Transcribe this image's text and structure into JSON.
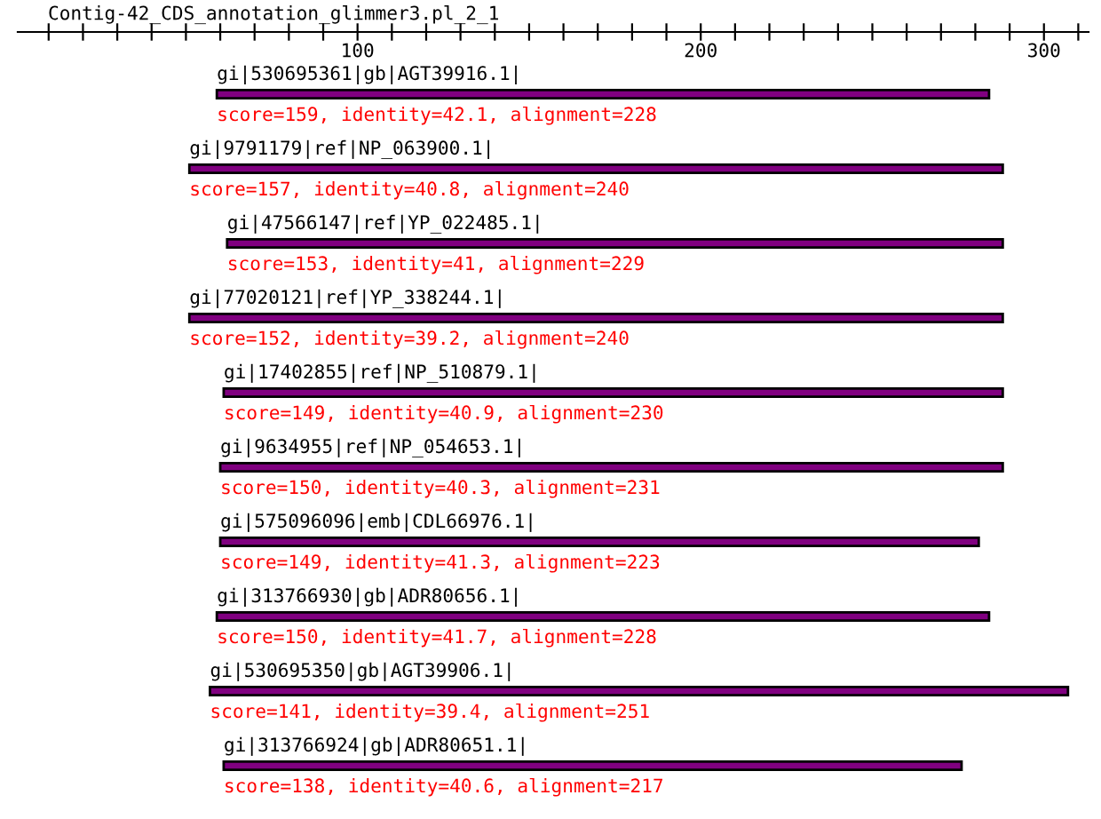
{
  "chart_data": {
    "type": "bar",
    "orientation": "horizontal",
    "title": "Contig-42_CDS_annotation_glimmer3.pl_2_1",
    "categories": [
      "gi|530695361|gb|AGT39916.1|",
      "gi|9791179|ref|NP_063900.1|",
      "gi|47566147|ref|YP_022485.1|",
      "gi|77020121|ref|YP_338244.1|",
      "gi|17402855|ref|NP_510879.1|",
      "gi|9634955|ref|NP_054653.1|",
      "gi|575096096|emb|CDL66976.1|",
      "gi|313766930|gb|ADR80656.1|",
      "gi|530695350|gb|AGT39906.1|",
      "gi|313766924|gb|ADR80651.1|"
    ],
    "base": [
      59,
      51,
      62,
      51,
      61,
      60,
      60,
      59,
      57,
      61
    ],
    "values": [
      225,
      237,
      226,
      237,
      227,
      228,
      221,
      225,
      250,
      215
    ],
    "annotations": [
      "score=159, identity=42.1, alignment=228",
      "score=157, identity=40.8, alignment=240",
      "score=153, identity=41, alignment=229",
      "score=152, identity=39.2, alignment=240",
      "score=149, identity=40.9, alignment=230",
      "score=150, identity=40.3, alignment=231",
      "score=149, identity=41.3, alignment=223",
      "score=150, identity=41.7, alignment=228",
      "score=141, identity=39.4, alignment=251",
      "score=138, identity=40.6, alignment=217"
    ],
    "color": "#800080",
    "xlim": [
      1,
      313
    ],
    "xticks": [
      {
        "value": 10,
        "label": null
      },
      {
        "value": 20,
        "label": null
      },
      {
        "value": 30,
        "label": null
      },
      {
        "value": 40,
        "label": null
      },
      {
        "value": 50,
        "label": null
      },
      {
        "value": 60,
        "label": null
      },
      {
        "value": 70,
        "label": null
      },
      {
        "value": 80,
        "label": null
      },
      {
        "value": 90,
        "label": null
      },
      100,
      {
        "value": 110,
        "label": null
      },
      {
        "value": 120,
        "label": null
      },
      {
        "value": 130,
        "label": null
      },
      {
        "value": 140,
        "label": null
      },
      {
        "value": 150,
        "label": null
      },
      {
        "value": 160,
        "label": null
      },
      {
        "value": 170,
        "label": null
      },
      {
        "value": 180,
        "label": null
      },
      {
        "value": 190,
        "label": null
      },
      200,
      {
        "value": 210,
        "label": null
      },
      {
        "value": 220,
        "label": null
      },
      {
        "value": 230,
        "label": null
      },
      {
        "value": 240,
        "label": null
      },
      {
        "value": 250,
        "label": null
      },
      {
        "value": 260,
        "label": null
      },
      {
        "value": 270,
        "label": null
      },
      {
        "value": 280,
        "label": null
      },
      {
        "value": 290,
        "label": null
      },
      300,
      {
        "value": 310,
        "label": null
      }
    ],
    "grid": false,
    "legend": false
  }
}
